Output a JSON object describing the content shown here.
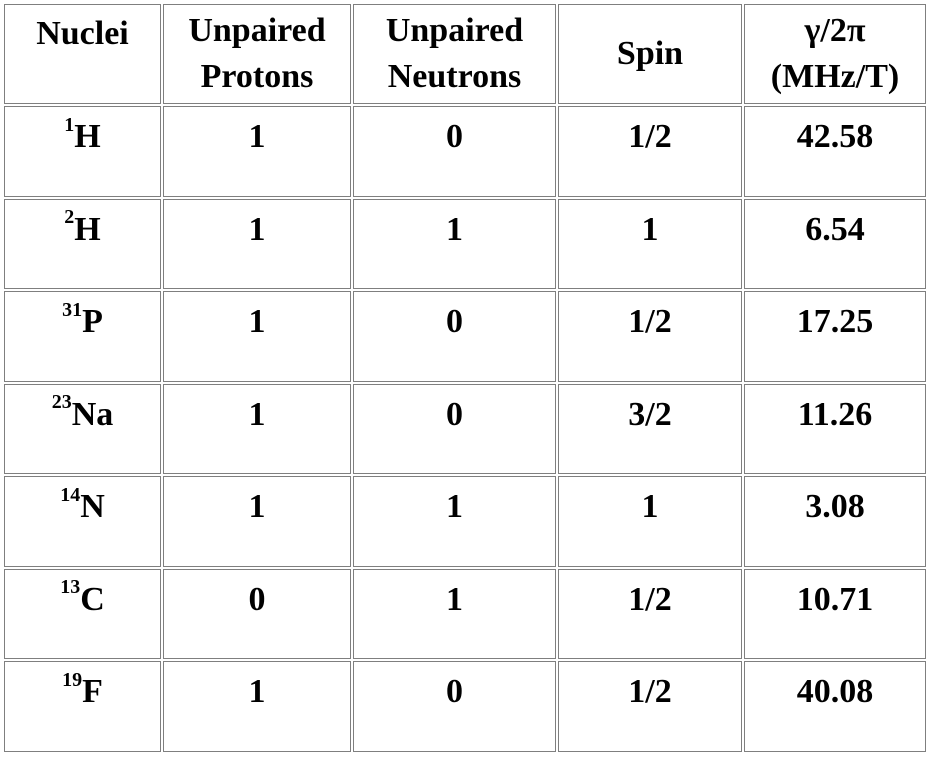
{
  "table": {
    "headers": {
      "nuclei": "Nuclei",
      "protons_line1": "Unpaired",
      "protons_line2": "Protons",
      "neutrons_line1": "Unpaired",
      "neutrons_line2": "Neutrons",
      "spin": "Spin",
      "gamma_line1": "γ/2π",
      "gamma_line2": "(MHz/T)"
    },
    "rows": [
      {
        "mass": "1",
        "symbol": "H",
        "protons": "1",
        "neutrons": "0",
        "spin": "1/2",
        "gamma": "42.58"
      },
      {
        "mass": "2",
        "symbol": "H",
        "protons": "1",
        "neutrons": "1",
        "spin": "1",
        "gamma": "6.54"
      },
      {
        "mass": "31",
        "symbol": "P",
        "protons": "1",
        "neutrons": "0",
        "spin": "1/2",
        "gamma": "17.25"
      },
      {
        "mass": "23",
        "symbol": "Na",
        "protons": "1",
        "neutrons": "0",
        "spin": "3/2",
        "gamma": "11.26"
      },
      {
        "mass": "14",
        "symbol": "N",
        "protons": "1",
        "neutrons": "1",
        "spin": "1",
        "gamma": "3.08"
      },
      {
        "mass": "13",
        "symbol": "C",
        "protons": "0",
        "neutrons": "1",
        "spin": "1/2",
        "gamma": "10.71"
      },
      {
        "mass": "19",
        "symbol": "F",
        "protons": "1",
        "neutrons": "0",
        "spin": "1/2",
        "gamma": "40.08"
      }
    ]
  }
}
